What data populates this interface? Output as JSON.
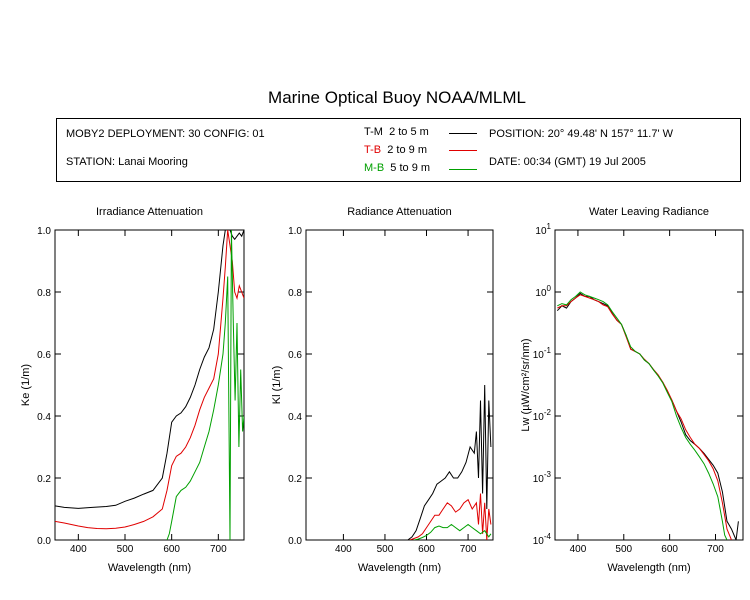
{
  "title": "Marine Optical Buoy NOAA/MLML",
  "info": {
    "deployment": "MOBY2 DEPLOYMENT: 30 CONFIG: 01",
    "station": "STATION: Lanai Mooring",
    "position": "POSITION: 20° 49.48' N   157° 11.7' W",
    "date": "DATE: 00:34 (GMT) 19 Jul 2005"
  },
  "legend": [
    {
      "name": "T-M",
      "range": "2 to 5  m",
      "color": "#000000"
    },
    {
      "name": "T-B",
      "range": "2 to 9  m",
      "color": "#e00000"
    },
    {
      "name": "M-B",
      "range": "5 to 9  m",
      "color": "#00a000"
    }
  ],
  "chart_data": [
    {
      "type": "line",
      "title": "Irradiance Attenuation",
      "xlabel": "Wavelength (nm)",
      "ylabel": "Ke  (1/m)",
      "xlim": [
        350,
        755
      ],
      "ylim": [
        0,
        1.0
      ],
      "xticks": [
        "400",
        "500",
        "600",
        "700"
      ],
      "yticks": [
        "0.0",
        "0.2",
        "0.4",
        "0.6",
        "0.8",
        "1.0"
      ],
      "series": [
        {
          "name": "T-M",
          "color": "#000000",
          "x": [
            350,
            370,
            400,
            430,
            460,
            480,
            500,
            520,
            540,
            560,
            580,
            590,
            600,
            610,
            620,
            630,
            640,
            650,
            660,
            670,
            680,
            690,
            700,
            710,
            715,
            720,
            725,
            730,
            735,
            740,
            745,
            750,
            755
          ],
          "y": [
            0.11,
            0.105,
            0.102,
            0.105,
            0.108,
            0.112,
            0.125,
            0.135,
            0.148,
            0.16,
            0.2,
            0.28,
            0.38,
            0.4,
            0.41,
            0.43,
            0.46,
            0.5,
            0.55,
            0.59,
            0.62,
            0.68,
            0.8,
            0.95,
            1.0,
            1.0,
            1.0,
            0.98,
            0.97,
            0.98,
            0.99,
            0.98,
            1.0
          ]
        },
        {
          "name": "T-B",
          "color": "#e00000",
          "x": [
            350,
            370,
            400,
            420,
            440,
            460,
            480,
            500,
            520,
            540,
            560,
            580,
            590,
            600,
            610,
            620,
            630,
            640,
            650,
            660,
            670,
            680,
            690,
            700,
            710,
            715,
            720,
            725,
            730,
            735,
            740,
            745,
            750,
            755
          ],
          "y": [
            0.06,
            0.055,
            0.045,
            0.04,
            0.037,
            0.036,
            0.038,
            0.042,
            0.05,
            0.06,
            0.075,
            0.1,
            0.16,
            0.24,
            0.27,
            0.28,
            0.3,
            0.33,
            0.37,
            0.42,
            0.46,
            0.49,
            0.52,
            0.6,
            0.78,
            0.88,
            1.0,
            0.95,
            0.9,
            0.8,
            0.78,
            0.82,
            0.8,
            0.78
          ]
        },
        {
          "name": "M-B",
          "color": "#00a000",
          "x": [
            590,
            595,
            600,
            605,
            610,
            620,
            630,
            640,
            650,
            660,
            670,
            680,
            690,
            700,
            710,
            715,
            720,
            725,
            728,
            732,
            736,
            740,
            744,
            748,
            752,
            755
          ],
          "y": [
            0.0,
            0.02,
            0.06,
            0.1,
            0.14,
            0.16,
            0.17,
            0.19,
            0.22,
            0.25,
            0.3,
            0.35,
            0.42,
            0.5,
            0.6,
            0.7,
            0.85,
            0.0,
            1.0,
            0.7,
            0.45,
            0.7,
            0.3,
            0.55,
            0.35,
            0.4
          ]
        }
      ]
    },
    {
      "type": "line",
      "title": "Radiance Attenuation",
      "xlabel": "Wavelength (nm)",
      "ylabel": "Kl  (1/m)",
      "xlim": [
        310,
        760
      ],
      "ylim": [
        0,
        1.0
      ],
      "xticks": [
        "400",
        "500",
        "600",
        "700"
      ],
      "yticks": [
        "0.0",
        "0.2",
        "0.4",
        "0.6",
        "0.8",
        "1.0"
      ],
      "series": [
        {
          "name": "T-M",
          "color": "#000000",
          "x": [
            555,
            565,
            575,
            585,
            595,
            605,
            615,
            625,
            635,
            645,
            655,
            665,
            675,
            685,
            695,
            705,
            715,
            720,
            725,
            730,
            735,
            740,
            745,
            750,
            755
          ],
          "y": [
            0.0,
            0.01,
            0.03,
            0.07,
            0.11,
            0.13,
            0.15,
            0.18,
            0.19,
            0.2,
            0.22,
            0.2,
            0.2,
            0.22,
            0.25,
            0.3,
            0.28,
            0.35,
            0.2,
            0.45,
            0.15,
            0.5,
            0.1,
            0.45,
            0.3
          ]
        },
        {
          "name": "T-B",
          "color": "#e00000",
          "x": [
            560,
            570,
            580,
            590,
            600,
            610,
            620,
            630,
            640,
            650,
            660,
            670,
            680,
            690,
            700,
            710,
            720,
            725,
            730,
            735,
            740,
            745,
            750,
            755
          ],
          "y": [
            0.0,
            0.005,
            0.01,
            0.02,
            0.04,
            0.06,
            0.08,
            0.08,
            0.1,
            0.12,
            0.11,
            0.09,
            0.1,
            0.12,
            0.13,
            0.1,
            0.12,
            0.05,
            0.15,
            0.02,
            0.12,
            0.0,
            0.1,
            0.05
          ]
        },
        {
          "name": "M-B",
          "color": "#00a000",
          "x": [
            570,
            580,
            590,
            600,
            610,
            620,
            630,
            640,
            650,
            660,
            670,
            680,
            690,
            700,
            710,
            720,
            730,
            740,
            750,
            755
          ],
          "y": [
            0.0,
            0.003,
            0.008,
            0.015,
            0.025,
            0.04,
            0.045,
            0.04,
            0.04,
            0.05,
            0.04,
            0.03,
            0.04,
            0.05,
            0.04,
            0.03,
            0.02,
            0.03,
            0.01,
            0.02
          ]
        }
      ]
    },
    {
      "type": "line",
      "title": "Water Leaving Radiance",
      "xlabel": "Wavelength (nm)",
      "ylabel": "Lw  (µW/cm²/sr/nm)",
      "xlim": [
        350,
        760
      ],
      "ylog": true,
      "ylim": [
        0.0001,
        10
      ],
      "xticks": [
        "400",
        "500",
        "600",
        "700"
      ],
      "yticks": [
        "10⁻⁴",
        "10⁻³",
        "10⁻²",
        "10⁻¹",
        "10⁰",
        "10¹"
      ],
      "series": [
        {
          "name": "T-M",
          "color": "#000000",
          "x": [
            355,
            365,
            375,
            385,
            395,
            405,
            415,
            425,
            435,
            445,
            455,
            465,
            475,
            485,
            495,
            505,
            515,
            525,
            535,
            545,
            555,
            565,
            575,
            585,
            595,
            605,
            615,
            625,
            635,
            645,
            655,
            665,
            675,
            685,
            695,
            705,
            715,
            725,
            735,
            745,
            750
          ],
          "y": [
            0.5,
            0.6,
            0.55,
            0.7,
            0.8,
            0.95,
            0.85,
            0.85,
            0.75,
            0.7,
            0.65,
            0.6,
            0.45,
            0.35,
            0.3,
            0.2,
            0.12,
            0.11,
            0.1,
            0.08,
            0.07,
            0.055,
            0.045,
            0.035,
            0.025,
            0.018,
            0.012,
            0.008,
            0.005,
            0.004,
            0.0035,
            0.003,
            0.0025,
            0.002,
            0.0016,
            0.0012,
            0.0006,
            0.0002,
            0.00015,
            0.0001,
            0.0002
          ]
        },
        {
          "name": "T-B",
          "color": "#e00000",
          "x": [
            355,
            365,
            375,
            385,
            395,
            405,
            415,
            425,
            435,
            445,
            455,
            465,
            475,
            485,
            495,
            505,
            515,
            525,
            535,
            545,
            555,
            565,
            575,
            585,
            595,
            605,
            615,
            625,
            635,
            645,
            655,
            665,
            675,
            685,
            695,
            705,
            715,
            725,
            735
          ],
          "y": [
            0.55,
            0.6,
            0.6,
            0.7,
            0.8,
            0.9,
            0.85,
            0.8,
            0.75,
            0.7,
            0.62,
            0.58,
            0.44,
            0.35,
            0.3,
            0.19,
            0.12,
            0.11,
            0.1,
            0.082,
            0.07,
            0.056,
            0.046,
            0.035,
            0.026,
            0.018,
            0.012,
            0.009,
            0.006,
            0.0045,
            0.0035,
            0.003,
            0.0024,
            0.0019,
            0.0014,
            0.0009,
            0.0004,
            0.00015,
            0.0001
          ]
        },
        {
          "name": "M-B",
          "color": "#00a000",
          "x": [
            355,
            365,
            375,
            385,
            395,
            405,
            415,
            425,
            435,
            445,
            455,
            465,
            475,
            485,
            495,
            505,
            515,
            525,
            535,
            545,
            555,
            565,
            575,
            585,
            595,
            605,
            615,
            625,
            635,
            645,
            655,
            665,
            675,
            685,
            695,
            705,
            715,
            720,
            725
          ],
          "y": [
            0.6,
            0.65,
            0.62,
            0.75,
            0.85,
            1.0,
            0.9,
            0.85,
            0.8,
            0.75,
            0.7,
            0.62,
            0.48,
            0.38,
            0.3,
            0.2,
            0.13,
            0.11,
            0.1,
            0.08,
            0.07,
            0.055,
            0.044,
            0.034,
            0.024,
            0.017,
            0.01,
            0.0065,
            0.0045,
            0.0035,
            0.0028,
            0.0022,
            0.0017,
            0.0012,
            0.0008,
            0.0005,
            0.0002,
            0.00012,
            0.0001
          ]
        }
      ]
    }
  ]
}
